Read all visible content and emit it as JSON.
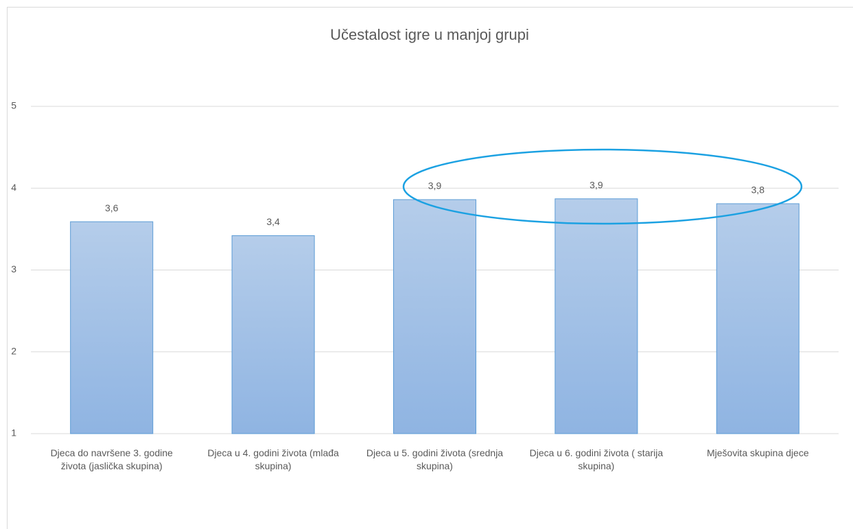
{
  "chart_data": {
    "type": "bar",
    "title": "Učestalost igre u manjoj grupi",
    "categories": [
      "Djeca do navršene 3. godine života (jaslička skupina)",
      "Djeca u 4. godini života (mlađa skupina)",
      "Djeca u 5. godini života (srednja skupina)",
      "Djeca u 6. godini života ( starija skupina)",
      "Mješovita skupina djece"
    ],
    "values": [
      3.59,
      3.42,
      3.86,
      3.87,
      3.81
    ],
    "value_labels": [
      "3,6",
      "3,4",
      "3,9",
      "3,9",
      "3,8"
    ],
    "color": "#9dbde6",
    "ylim": [
      1,
      5
    ],
    "yticks": [
      1,
      2,
      3,
      4,
      5
    ],
    "grid": true
  }
}
